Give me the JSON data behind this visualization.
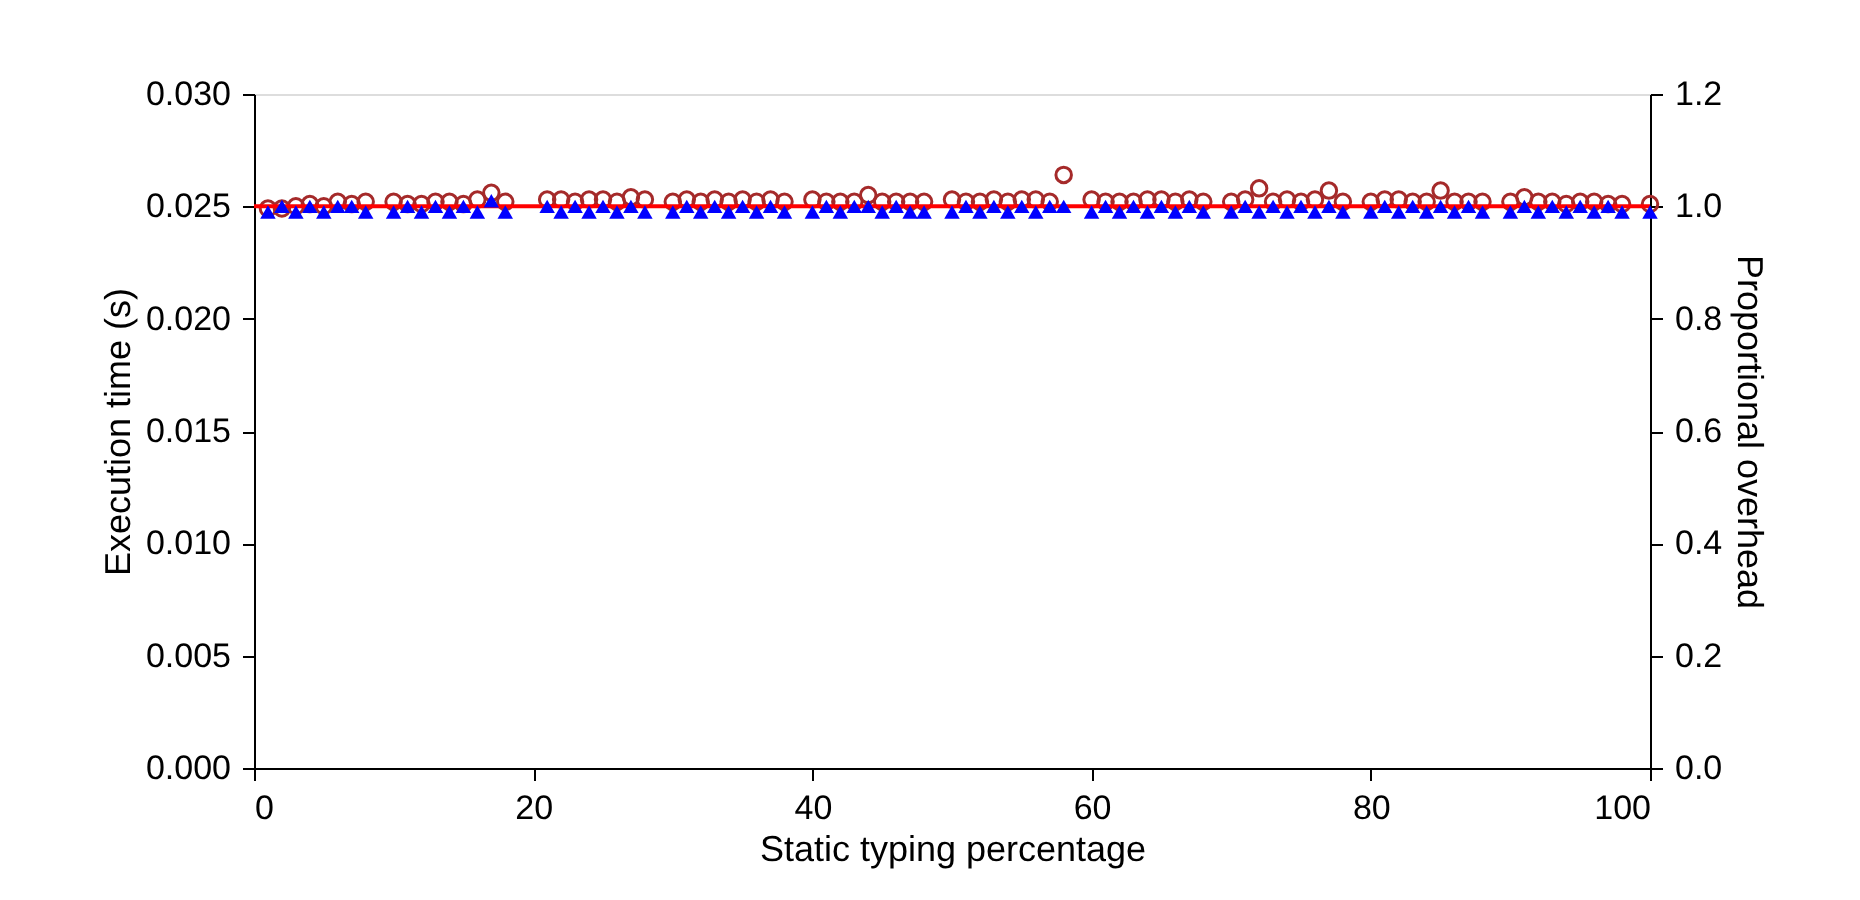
{
  "chart_data": {
    "type": "scatter",
    "xlabel": "Static typing percentage",
    "ylabel": "Execution time (s)",
    "y2label": "Proportional overhead",
    "xlim": [
      0,
      100
    ],
    "xticks": [
      0,
      20,
      40,
      60,
      80,
      100
    ],
    "ylim": [
      0,
      0.03
    ],
    "yticks": [
      {
        "value": 0,
        "label": "0.000"
      },
      {
        "value": 0.005,
        "label": "0.005"
      },
      {
        "value": 0.01,
        "label": "0.010"
      },
      {
        "value": 0.015,
        "label": "0.015"
      },
      {
        "value": 0.02,
        "label": "0.020"
      },
      {
        "value": 0.025,
        "label": "0.025"
      },
      {
        "value": 0.03,
        "label": "0.030"
      }
    ],
    "y2lim": [
      0,
      1.2
    ],
    "y2ticks": [
      {
        "value": 0,
        "label": "0.0"
      },
      {
        "value": 0.2,
        "label": "0.2"
      },
      {
        "value": 0.4,
        "label": "0.4"
      },
      {
        "value": 0.6,
        "label": "0.6"
      },
      {
        "value": 0.8,
        "label": "0.8"
      },
      {
        "value": 1.0,
        "label": "1.0"
      },
      {
        "value": 1.2,
        "label": "1.2"
      }
    ],
    "x": [
      1,
      2,
      3,
      4,
      5,
      6,
      7,
      8,
      10,
      11,
      12,
      13,
      14,
      15,
      16,
      17,
      18,
      21,
      22,
      23,
      24,
      25,
      26,
      27,
      28,
      30,
      31,
      32,
      33,
      34,
      35,
      36,
      37,
      38,
      40,
      41,
      42,
      43,
      44,
      45,
      46,
      47,
      48,
      50,
      51,
      52,
      53,
      54,
      55,
      56,
      57,
      58,
      60,
      61,
      62,
      63,
      64,
      65,
      66,
      67,
      68,
      70,
      71,
      72,
      73,
      74,
      75,
      76,
      77,
      78,
      80,
      81,
      82,
      83,
      84,
      85,
      86,
      87,
      88,
      90,
      91,
      92,
      93,
      94,
      95,
      96,
      97,
      98,
      100
    ],
    "series": [
      {
        "marker": "circle",
        "color": "#a52a2a",
        "axis": "y",
        "values": [
          0.0249,
          0.0249,
          0.025,
          0.0251,
          0.025,
          0.0252,
          0.0251,
          0.0252,
          0.0252,
          0.0251,
          0.0251,
          0.0252,
          0.0252,
          0.0251,
          0.0253,
          0.0256,
          0.0252,
          0.0253,
          0.0253,
          0.0252,
          0.0253,
          0.0253,
          0.0252,
          0.0254,
          0.0253,
          0.0252,
          0.0253,
          0.0252,
          0.0253,
          0.0252,
          0.0253,
          0.0252,
          0.0253,
          0.0252,
          0.0253,
          0.0252,
          0.0252,
          0.0252,
          0.0255,
          0.0252,
          0.0252,
          0.0252,
          0.0252,
          0.0253,
          0.0252,
          0.0252,
          0.0253,
          0.0252,
          0.0253,
          0.0253,
          0.0252,
          0.0264,
          0.0253,
          0.0252,
          0.0252,
          0.0252,
          0.0253,
          0.0253,
          0.0252,
          0.0253,
          0.0252,
          0.0252,
          0.0253,
          0.0258,
          0.0252,
          0.0253,
          0.0252,
          0.0253,
          0.0257,
          0.0252,
          0.0252,
          0.0253,
          0.0253,
          0.0252,
          0.0252,
          0.0257,
          0.0252,
          0.0252,
          0.0252,
          0.0252,
          0.0254,
          0.0252,
          0.0252,
          0.0251,
          0.0252,
          0.0252,
          0.0251,
          0.0251,
          0.0251
        ]
      },
      {
        "marker": "triangle",
        "color": "#0000ff",
        "axis": "y2",
        "values": [
          0.99,
          1.0,
          0.99,
          1.0,
          0.99,
          1.0,
          1.0,
          0.99,
          0.99,
          1.0,
          0.99,
          1.0,
          0.99,
          1.0,
          0.99,
          1.01,
          0.99,
          1.0,
          0.99,
          1.0,
          0.99,
          1.0,
          0.99,
          1.0,
          0.99,
          0.99,
          1.0,
          0.99,
          1.0,
          0.99,
          1.0,
          0.99,
          1.0,
          0.99,
          0.99,
          1.0,
          0.99,
          1.0,
          1.0,
          0.99,
          1.0,
          0.99,
          0.99,
          0.99,
          1.0,
          0.99,
          1.0,
          0.99,
          1.0,
          0.99,
          1.0,
          1.0,
          0.99,
          1.0,
          0.99,
          1.0,
          0.99,
          1.0,
          0.99,
          1.0,
          0.99,
          0.99,
          1.0,
          0.99,
          1.0,
          0.99,
          1.0,
          0.99,
          1.0,
          0.99,
          0.99,
          1.0,
          0.99,
          1.0,
          0.99,
          1.0,
          0.99,
          1.0,
          0.99,
          0.99,
          1.0,
          0.99,
          1.0,
          0.99,
          1.0,
          0.99,
          1.0,
          0.99,
          0.99
        ]
      }
    ],
    "ref_lines": [
      {
        "axis": "y2",
        "value": 1.0,
        "color": "#ff0000"
      }
    ],
    "grid": false
  }
}
